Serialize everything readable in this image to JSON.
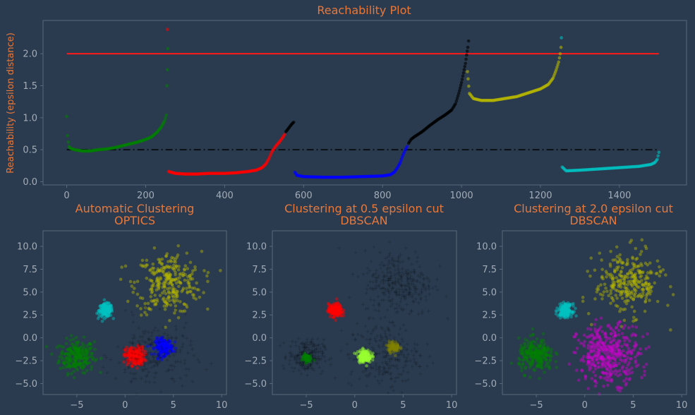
{
  "colors": {
    "background": "#2a3b4f",
    "text": "#e8783a",
    "tick": "#a3acb7",
    "spine": "#58697b",
    "green": "#008000",
    "red": "#ff0000",
    "blue": "#0000ff",
    "black": "#000000",
    "olive": "#b5b500",
    "cyan": "#00c0c0",
    "magenta": "#d000d0",
    "lime": "#9aff30",
    "darkolive": "#808000"
  },
  "chart_data": [
    {
      "id": "reachability",
      "type": "scatter",
      "title": "Reachability Plot",
      "xlabel": "",
      "ylabel": "Reachability (epsilon distance)",
      "xlim": [
        -60,
        1570
      ],
      "ylim": [
        -0.05,
        2.52
      ],
      "xticks": [
        "0",
        "200",
        "400",
        "600",
        "800",
        "1000",
        "1200",
        "1400"
      ],
      "yticks": [
        "0.0",
        "0.5",
        "1.0",
        "1.5",
        "2.0"
      ],
      "hlines": [
        {
          "y": 2.0,
          "x": [
            0,
            1500
          ],
          "color": "red",
          "style": "solid"
        },
        {
          "y": 0.5,
          "x": [
            0,
            1500
          ],
          "color": "black",
          "style": "dashdot"
        }
      ],
      "series": [
        {
          "color": "green",
          "points": [
            [
              0,
              1.02
            ],
            [
              2,
              0.72
            ],
            [
              4,
              0.62
            ],
            [
              6,
              0.55
            ],
            [
              10,
              0.52
            ],
            [
              20,
              0.5
            ],
            [
              40,
              0.48
            ],
            [
              60,
              0.48
            ],
            [
              80,
              0.5
            ],
            [
              100,
              0.51
            ],
            [
              120,
              0.53
            ],
            [
              140,
              0.56
            ],
            [
              160,
              0.59
            ],
            [
              180,
              0.62
            ],
            [
              200,
              0.66
            ],
            [
              215,
              0.7
            ],
            [
              230,
              0.78
            ],
            [
              240,
              0.86
            ],
            [
              248,
              0.95
            ],
            [
              252,
              1.04
            ],
            [
              254,
              1.5
            ],
            [
              255,
              1.75
            ],
            [
              256,
              2.08
            ]
          ]
        },
        {
          "color": "red",
          "points": [
            [
              255,
              2.38
            ],
            [
              258,
              0.16
            ],
            [
              275,
              0.13
            ],
            [
              300,
              0.12
            ],
            [
              330,
              0.12
            ],
            [
              360,
              0.13
            ],
            [
              400,
              0.13
            ],
            [
              430,
              0.14
            ],
            [
              460,
              0.16
            ],
            [
              480,
              0.18
            ],
            [
              495,
              0.22
            ],
            [
              505,
              0.28
            ],
            [
              512,
              0.36
            ],
            [
              520,
              0.47
            ],
            [
              530,
              0.56
            ],
            [
              540,
              0.63
            ],
            [
              548,
              0.7
            ],
            [
              552,
              0.74
            ]
          ]
        },
        {
          "color": "black",
          "points": [
            [
              555,
              0.78
            ],
            [
              560,
              0.82
            ],
            [
              565,
              0.86
            ],
            [
              570,
              0.9
            ],
            [
              575,
              0.93
            ]
          ]
        },
        {
          "color": "blue",
          "points": [
            [
              578,
              0.15
            ],
            [
              583,
              0.1
            ],
            [
              600,
              0.08
            ],
            [
              650,
              0.07
            ],
            [
              700,
              0.07
            ],
            [
              750,
              0.08
            ],
            [
              800,
              0.09
            ],
            [
              820,
              0.11
            ],
            [
              830,
              0.15
            ],
            [
              838,
              0.22
            ],
            [
              845,
              0.3
            ],
            [
              852,
              0.42
            ],
            [
              858,
              0.5
            ],
            [
              862,
              0.55
            ]
          ]
        },
        {
          "color": "black",
          "points": [
            [
              866,
              0.6
            ],
            [
              872,
              0.66
            ],
            [
              880,
              0.7
            ],
            [
              900,
              0.78
            ],
            [
              920,
              0.88
            ],
            [
              940,
              0.97
            ],
            [
              960,
              1.05
            ],
            [
              975,
              1.12
            ],
            [
              985,
              1.22
            ],
            [
              993,
              1.38
            ],
            [
              1000,
              1.55
            ],
            [
              1005,
              1.7
            ],
            [
              1010,
              1.85
            ],
            [
              1013,
              1.98
            ],
            [
              1016,
              2.1
            ],
            [
              1018,
              2.2
            ]
          ]
        },
        {
          "color": "olive",
          "points": [
            [
              1015,
              1.72
            ],
            [
              1020,
              1.38
            ],
            [
              1030,
              1.3
            ],
            [
              1050,
              1.27
            ],
            [
              1080,
              1.27
            ],
            [
              1110,
              1.3
            ],
            [
              1140,
              1.33
            ],
            [
              1170,
              1.39
            ],
            [
              1200,
              1.45
            ],
            [
              1220,
              1.52
            ],
            [
              1232,
              1.62
            ],
            [
              1240,
              1.75
            ],
            [
              1246,
              1.87
            ],
            [
              1250,
              2.0
            ],
            [
              1252,
              2.1
            ]
          ]
        },
        {
          "color": "cyan",
          "points": [
            [
              1253,
              2.25
            ],
            [
              1255,
              0.23
            ],
            [
              1265,
              0.17
            ],
            [
              1300,
              0.18
            ],
            [
              1350,
              0.2
            ],
            [
              1400,
              0.22
            ],
            [
              1450,
              0.24
            ],
            [
              1480,
              0.27
            ],
            [
              1490,
              0.3
            ],
            [
              1496,
              0.35
            ],
            [
              1500,
              0.46
            ]
          ]
        }
      ]
    },
    {
      "id": "optics",
      "type": "scatter",
      "title": "Automatic Clustering\nOPTICS",
      "xlim": [
        -8.5,
        10.5
      ],
      "ylim": [
        -6.2,
        11.7
      ],
      "xticks": [
        "−5",
        "0",
        "5",
        "10"
      ],
      "yticks": [
        "−5.0",
        "−2.5",
        "0.0",
        "2.5",
        "5.0",
        "7.5",
        "10.0"
      ],
      "clusters": [
        {
          "color": "green",
          "center": [
            -5.0,
            -2.0
          ],
          "spread": 0.9,
          "n": 250
        },
        {
          "color": "cyan",
          "center": [
            -2.0,
            3.0
          ],
          "spread": 0.35,
          "n": 200
        },
        {
          "color": "olive",
          "center": [
            4.5,
            6.0
          ],
          "spread": 1.7,
          "n": 300
        },
        {
          "color": "red",
          "center": [
            1.0,
            -2.0
          ],
          "spread": 0.5,
          "n": 220
        },
        {
          "color": "blue",
          "center": [
            4.0,
            -1.0
          ],
          "spread": 0.45,
          "n": 200
        },
        {
          "color": "noise",
          "center": [
            3.0,
            -2.0
          ],
          "spread": 2.0,
          "n": 220
        }
      ]
    },
    {
      "id": "dbscan05",
      "type": "scatter",
      "title": "Clustering at 0.5 epsilon cut\nDBSCAN",
      "xlim": [
        -8.5,
        10.5
      ],
      "ylim": [
        -6.2,
        11.7
      ],
      "xticks": [
        "−5",
        "0",
        "5",
        "10"
      ],
      "yticks": [
        "−5.0",
        "−2.5",
        "0.0",
        "2.5",
        "5.0",
        "7.5",
        "10.0"
      ],
      "clusters": [
        {
          "color": "noise",
          "center": [
            -5.0,
            -2.0
          ],
          "spread": 0.9,
          "n": 230
        },
        {
          "color": "noise",
          "center": [
            4.5,
            6.0
          ],
          "spread": 1.8,
          "n": 320
        },
        {
          "color": "noise",
          "center": [
            3.0,
            -2.0
          ],
          "spread": 1.8,
          "n": 250
        },
        {
          "color": "green",
          "center": [
            -5.0,
            -2.2
          ],
          "spread": 0.25,
          "n": 60
        },
        {
          "color": "red",
          "center": [
            -2.0,
            3.0
          ],
          "spread": 0.35,
          "n": 200
        },
        {
          "color": "lime",
          "center": [
            1.0,
            -2.0
          ],
          "spread": 0.35,
          "n": 150
        },
        {
          "color": "darkolive",
          "center": [
            4.0,
            -1.0
          ],
          "spread": 0.3,
          "n": 90
        }
      ]
    },
    {
      "id": "dbscan20",
      "type": "scatter",
      "title": "Clustering at 2.0 epsilon cut\nDBSCAN",
      "xlim": [
        -8.5,
        10.5
      ],
      "ylim": [
        -6.2,
        11.7
      ],
      "xticks": [
        "−5",
        "0",
        "5",
        "10"
      ],
      "yticks": [
        "−5.0",
        "−2.5",
        "0.0",
        "2.5",
        "5.0",
        "7.5",
        "10.0"
      ],
      "clusters": [
        {
          "color": "green",
          "center": [
            -5.0,
            -2.0
          ],
          "spread": 0.9,
          "n": 250
        },
        {
          "color": "cyan",
          "center": [
            -2.0,
            3.0
          ],
          "spread": 0.35,
          "n": 200
        },
        {
          "color": "olive",
          "center": [
            4.5,
            6.0
          ],
          "spread": 1.7,
          "n": 300
        },
        {
          "color": "magenta",
          "center": [
            2.5,
            -1.8
          ],
          "spread": 1.6,
          "n": 420
        }
      ]
    }
  ]
}
